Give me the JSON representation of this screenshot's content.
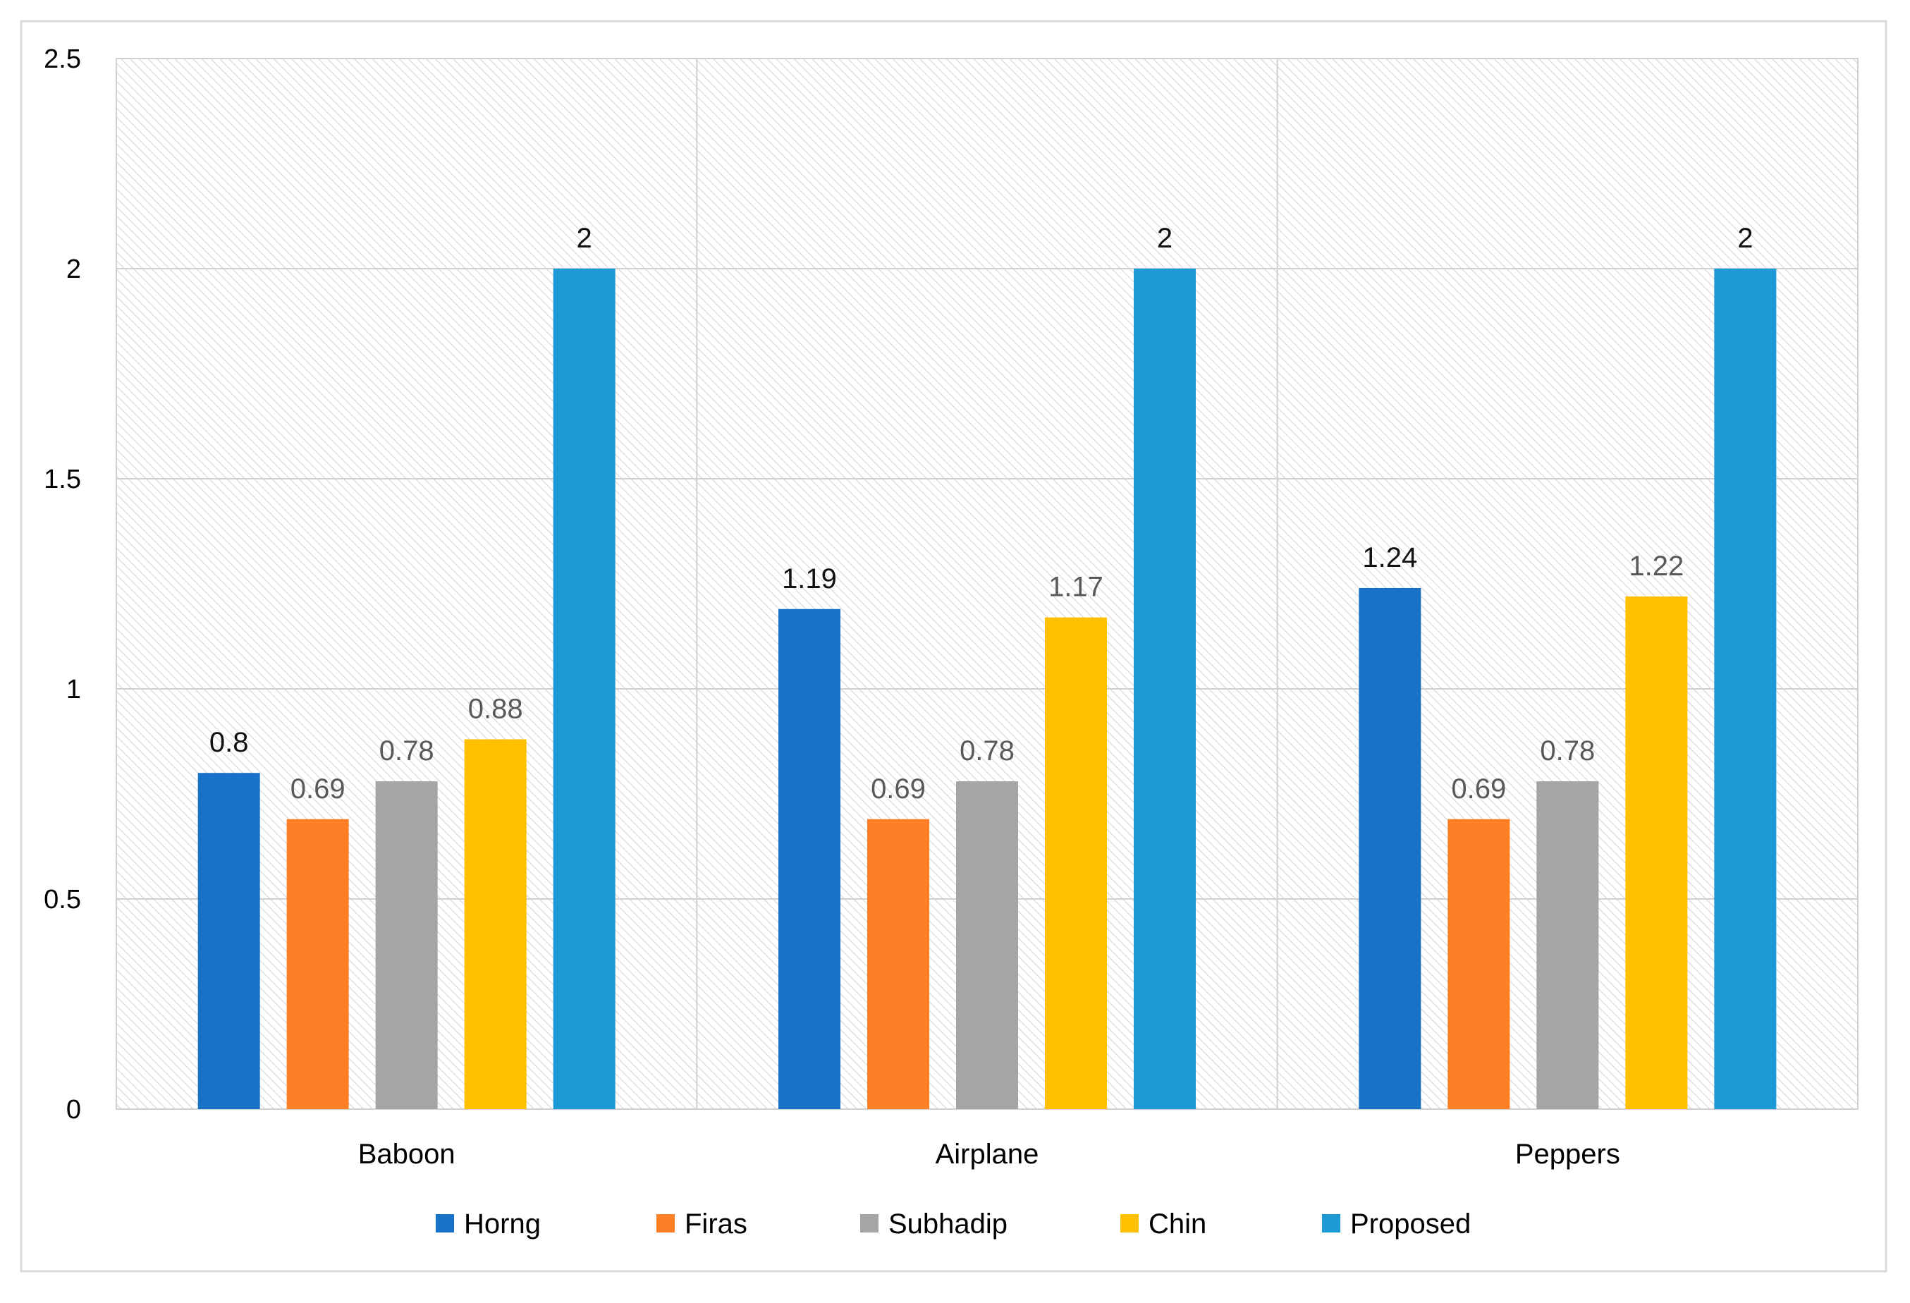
{
  "chart_data": {
    "type": "bar",
    "title": "",
    "xlabel": "",
    "ylabel": "",
    "ylim": [
      0,
      2.5
    ],
    "yticks": [
      0,
      0.5,
      1,
      1.5,
      2,
      2.5
    ],
    "ytick_labels": [
      "0",
      "0.5",
      "1",
      "1.5",
      "2",
      "2.5"
    ],
    "categories": [
      "Baboon",
      "Airplane",
      "Peppers"
    ],
    "series": [
      {
        "name": "Horng",
        "color": "#1772C8",
        "values": [
          0.8,
          1.19,
          1.24
        ],
        "labels": [
          "0.8",
          "1.19",
          "1.24"
        ],
        "label_color": "#111111"
      },
      {
        "name": "Firas",
        "color": "#FF7F27",
        "values": [
          0.69,
          0.69,
          0.69
        ],
        "labels": [
          "0.69",
          "0.69",
          "0.69"
        ],
        "label_color": "#595959"
      },
      {
        "name": "Subhadip",
        "color": "#A5A5A5",
        "values": [
          0.78,
          0.78,
          0.78
        ],
        "labels": [
          "0.78",
          "0.78",
          "0.78"
        ],
        "label_color": "#595959"
      },
      {
        "name": "Chin",
        "color": "#FFC000",
        "values": [
          0.88,
          1.17,
          1.22
        ],
        "labels": [
          "0.88",
          "1.17",
          "1.22"
        ],
        "label_color": "#595959"
      },
      {
        "name": "Proposed",
        "color": "#1B9AD6",
        "values": [
          2,
          2,
          2
        ],
        "labels": [
          "2",
          "2",
          "2"
        ],
        "label_color": "#111111"
      }
    ],
    "legend_position": "bottom",
    "grid": true
  }
}
